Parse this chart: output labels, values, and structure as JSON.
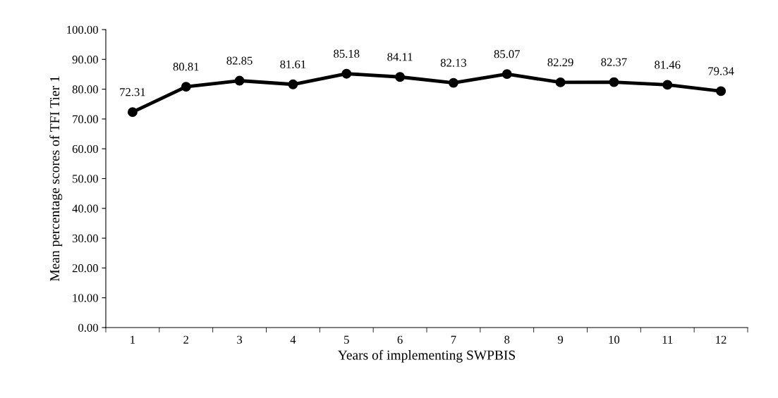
{
  "chart_data": {
    "type": "line",
    "xlabel": "Years of implementing SWPBIS",
    "ylabel": "Mean percentage scores of TFI Tier 1",
    "categories": [
      "1",
      "2",
      "3",
      "4",
      "5",
      "6",
      "7",
      "8",
      "9",
      "10",
      "11",
      "12"
    ],
    "series": [
      {
        "color": "#000000",
        "values": [
          72.31,
          80.81,
          82.85,
          81.61,
          85.18,
          84.11,
          82.13,
          85.07,
          82.29,
          82.37,
          81.46,
          79.34
        ]
      }
    ],
    "ylim": [
      0,
      100
    ],
    "yticks": [
      {
        "value": 0,
        "label": "0.00"
      },
      {
        "value": 10,
        "label": "10.00"
      },
      {
        "value": 20,
        "label": "20.00"
      },
      {
        "value": 30,
        "label": "30.00"
      },
      {
        "value": 40,
        "label": "40.00"
      },
      {
        "value": 50,
        "label": "50.00"
      },
      {
        "value": 60,
        "label": "60.00"
      },
      {
        "value": 70,
        "label": "70.00"
      },
      {
        "value": 80,
        "label": "80.00"
      },
      {
        "value": 90,
        "label": "90.00"
      },
      {
        "value": 100,
        "label": "100.00"
      }
    ],
    "data_labels": true,
    "grid": false,
    "legend": false,
    "marker": "circle",
    "line_style": "solid"
  }
}
